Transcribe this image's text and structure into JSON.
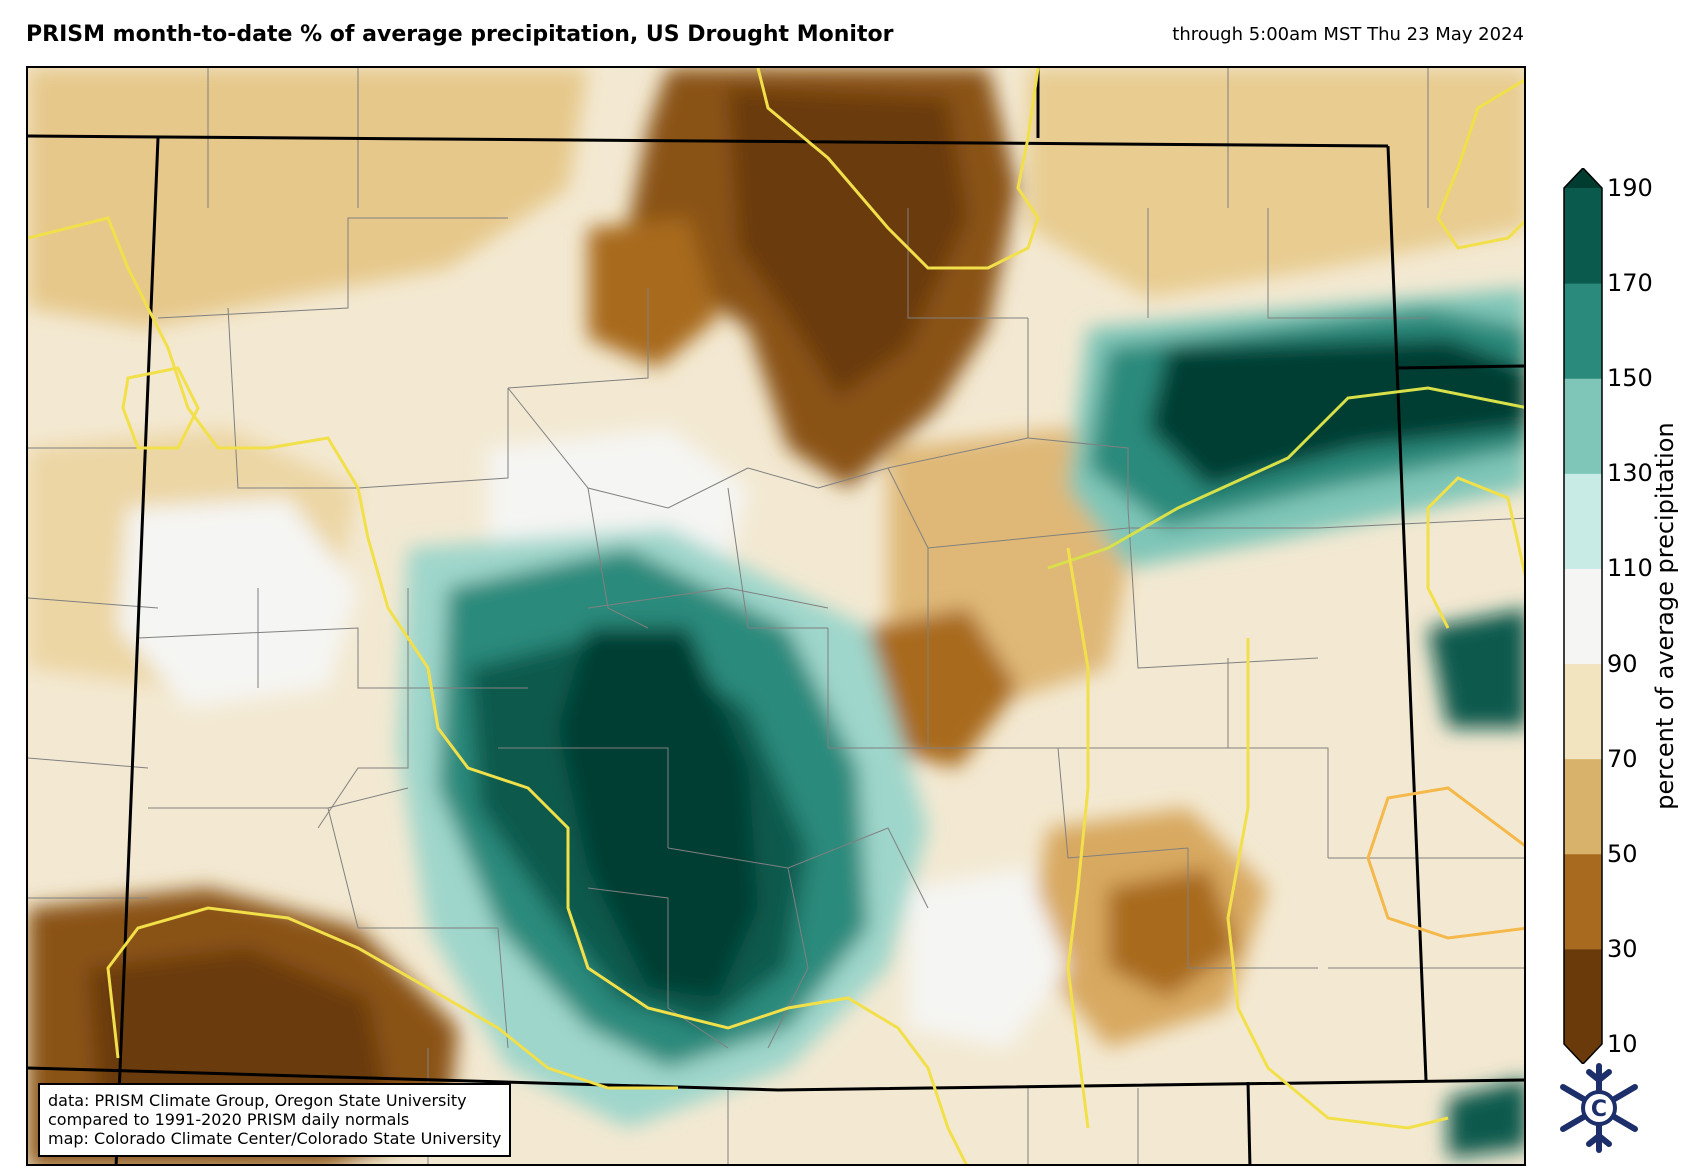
{
  "header": {
    "title": "PRISM month-to-date % of average precipitation, US Drought Monitor",
    "valid_time": "through 5:00am MST Thu 23 May 2024"
  },
  "colorbar": {
    "label": "percent of average precipitation",
    "ticks": [
      "10",
      "30",
      "50",
      "70",
      "90",
      "110",
      "130",
      "150",
      "170",
      "190"
    ],
    "colors": [
      "#6b3a0a",
      "#a86a1e",
      "#d8b26a",
      "#f3e4c0",
      "#f5f5f3",
      "#c9ebe6",
      "#7fc6b8",
      "#2a8a7c",
      "#0a5a4e",
      "#003c30"
    ],
    "extends": "both"
  },
  "map": {
    "region": "Colorado",
    "variable": "month-to-date % of average precipitation",
    "overlay": "US Drought Monitor",
    "drought_line_colors": [
      "#f2e04a",
      "#f5b84a"
    ],
    "legend_palette": "brown-to-teal diverging"
  },
  "credits": {
    "line1": "data: PRISM Climate Group, Oregon State University",
    "line2": "compared to 1991-2020 PRISM daily normals",
    "line3": "map: Colorado Climate Center/Colorado State University"
  },
  "logo": {
    "icon": "snowflake-logo-icon",
    "letter": "C",
    "color": "#1c2f6b"
  }
}
